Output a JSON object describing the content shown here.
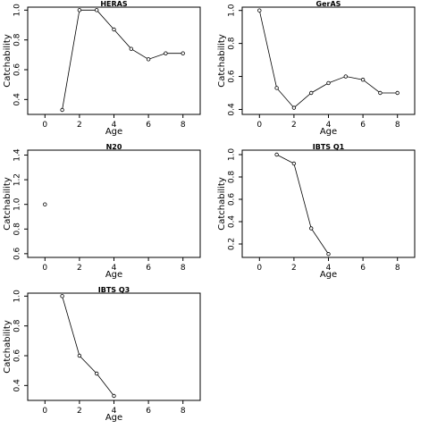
{
  "chart_data": [
    {
      "type": "line",
      "title": "HERAS",
      "xlabel": "Age",
      "ylabel": "Catchability",
      "xlim": [
        -1,
        9
      ],
      "ylim": [
        0.3,
        1.02
      ],
      "xticks": [
        "0",
        "2",
        "4",
        "6",
        "8"
      ],
      "yticks": [
        "0.4",
        "0.6",
        "0.8",
        "1.0"
      ],
      "grid": false,
      "x": [
        1,
        2,
        3,
        4,
        5,
        6,
        7,
        8
      ],
      "y": [
        0.33,
        1.0,
        1.0,
        0.87,
        0.74,
        0.67,
        0.71,
        0.71
      ]
    },
    {
      "type": "line",
      "title": "GerAS",
      "xlabel": "Age",
      "ylabel": "Catchability",
      "xlim": [
        -1,
        9
      ],
      "ylim": [
        0.37,
        1.02
      ],
      "xticks": [
        "0",
        "2",
        "4",
        "6",
        "8"
      ],
      "yticks": [
        "0.4",
        "0.6",
        "0.8",
        "1.0"
      ],
      "grid": false,
      "x": [
        0,
        1,
        2,
        3,
        4,
        5,
        6,
        7,
        8
      ],
      "y": [
        1.0,
        0.53,
        0.41,
        0.5,
        0.56,
        0.6,
        0.58,
        0.5,
        0.5
      ]
    },
    {
      "type": "line",
      "title": "N20",
      "xlabel": "Age",
      "ylabel": "Catchability",
      "xlim": [
        -1,
        9
      ],
      "ylim": [
        0.57,
        1.44
      ],
      "xticks": [
        "0",
        "2",
        "4",
        "6",
        "8"
      ],
      "yticks": [
        "0.6",
        "0.8",
        "1.0",
        "1.2",
        "1.4"
      ],
      "grid": false,
      "x": [
        0
      ],
      "y": [
        1.0
      ]
    },
    {
      "type": "line",
      "title": "IBTS Q1",
      "xlabel": "Age",
      "ylabel": "Catchability",
      "xlim": [
        -1,
        9
      ],
      "ylim": [
        0.08,
        1.04
      ],
      "xticks": [
        "0",
        "2",
        "4",
        "6",
        "8"
      ],
      "yticks": [
        "0.2",
        "0.4",
        "0.6",
        "0.8",
        "1.0"
      ],
      "grid": false,
      "x": [
        1,
        2,
        3,
        4
      ],
      "y": [
        1.0,
        0.92,
        0.34,
        0.11
      ]
    },
    {
      "type": "line",
      "title": "IBTS Q3",
      "xlabel": "Age",
      "ylabel": "Catchability",
      "xlim": [
        -1,
        9
      ],
      "ylim": [
        0.3,
        1.02
      ],
      "xticks": [
        "0",
        "2",
        "4",
        "6",
        "8"
      ],
      "yticks": [
        "0.4",
        "0.6",
        "0.8",
        "1.0"
      ],
      "grid": false,
      "x": [
        1,
        2,
        3,
        4
      ],
      "y": [
        1.0,
        0.6,
        0.48,
        0.33
      ]
    }
  ]
}
